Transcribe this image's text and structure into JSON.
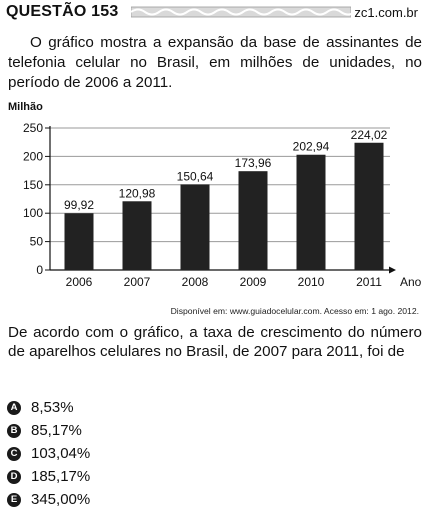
{
  "header": {
    "question_label": "QUESTÃO 153",
    "site": "zc1.com.br"
  },
  "intro": {
    "text": "O gráfico mostra a expansão da base de assinantes de telefonia celular no Brasil, em milhões de unidades, no período de 2006 a 2011."
  },
  "chart_data": {
    "type": "bar",
    "ylabel": "Milhão",
    "xlabel": "Ano",
    "categories": [
      "2006",
      "2007",
      "2008",
      "2009",
      "2010",
      "2011"
    ],
    "values": [
      99.92,
      120.98,
      150.64,
      173.96,
      202.94,
      224.02
    ],
    "value_labels": [
      "99,92",
      "120,98",
      "150,64",
      "173,96",
      "202,94",
      "224,02"
    ],
    "ylim": [
      0,
      250
    ],
    "yticks": [
      0,
      50,
      100,
      150,
      200,
      250
    ],
    "grid": true,
    "bar_color": "#222222"
  },
  "source": "Disponível em: www.guiadocelular.com. Acesso em: 1 ago. 2012.",
  "question": {
    "text": "De acordo com o gráfico, a taxa de crescimento do número de aparelhos celulares no Brasil, de 2007 para 2011, foi de"
  },
  "options": [
    {
      "letter": "A",
      "text": "8,53%"
    },
    {
      "letter": "B",
      "text": "85,17%"
    },
    {
      "letter": "C",
      "text": "103,04%"
    },
    {
      "letter": "D",
      "text": "185,17%"
    },
    {
      "letter": "E",
      "text": "345,00%"
    }
  ]
}
